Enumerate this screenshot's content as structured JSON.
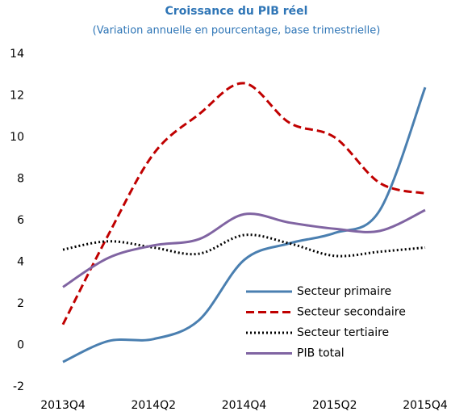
{
  "chart_data": {
    "type": "line",
    "title": "Croissance du PIB réel",
    "subtitle": "(Variation annuelle en pourcentage, base trimestrielle)",
    "categories": [
      "2013Q4",
      null,
      "2014Q2",
      null,
      "2014Q4",
      null,
      "2015Q2",
      null,
      "2015Q4"
    ],
    "series": [
      {
        "name": "Secteur primaire",
        "color": "#4a7fb0",
        "dash": "solid",
        "values": [
          -0.8,
          0.2,
          0.3,
          1.2,
          4.1,
          4.9,
          5.4,
          6.5,
          12.4
        ]
      },
      {
        "name": "Secteur secondaire",
        "color": "#c00000",
        "dash": "dashed",
        "values": [
          1.0,
          5.3,
          9.2,
          11.1,
          12.6,
          10.7,
          10.0,
          7.8,
          7.3
        ]
      },
      {
        "name": "Secteur tertiaire",
        "color": "#000000",
        "dash": "dotted",
        "values": [
          4.6,
          5.0,
          4.7,
          4.4,
          5.3,
          4.9,
          4.3,
          4.5,
          4.7
        ]
      },
      {
        "name": "PIB total",
        "color": "#8064a2",
        "dash": "solid",
        "values": [
          2.8,
          4.2,
          4.8,
          5.1,
          6.3,
          5.9,
          5.6,
          5.5,
          6.5
        ]
      }
    ],
    "ylim": [
      -2,
      14
    ],
    "yticks": [
      -2,
      0,
      2,
      4,
      6,
      8,
      10,
      12,
      14
    ],
    "grid": false,
    "legend": "lower right"
  }
}
